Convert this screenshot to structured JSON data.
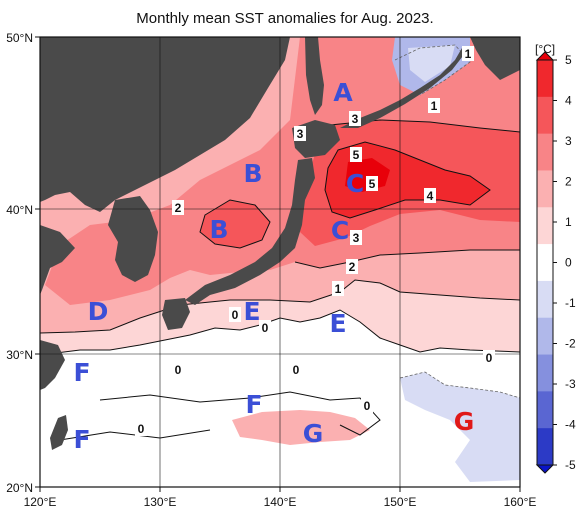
{
  "title": "Monthly mean SST anomalies for Aug. 2023.",
  "map": {
    "lon_ticks": [
      "120°E",
      "130°E",
      "140°E",
      "150°E",
      "160°E"
    ],
    "lat_ticks": [
      "50°N",
      "40°N",
      "30°N",
      "20°N"
    ]
  },
  "colorbar": {
    "unit": "[°C]",
    "ticks": [
      "5",
      "4",
      "3",
      "2",
      "1",
      "0",
      "-1",
      "-2",
      "-3",
      "-4",
      "-5"
    ],
    "colors": [
      "#e8000a",
      "#f0282d",
      "#f5565a",
      "#f88487",
      "#fbb0b1",
      "#fdd6d6",
      "#ffffff",
      "#d8dcf4",
      "#b0b8ea",
      "#8590de",
      "#5a66d2",
      "#2c3ac6",
      "#0a14c8"
    ]
  },
  "region_labels": [
    {
      "id": "A",
      "text": "A",
      "color": "#3b4fd6"
    },
    {
      "id": "B1",
      "text": "B",
      "color": "#3b4fd6"
    },
    {
      "id": "B2",
      "text": "B",
      "color": "#3b4fd6"
    },
    {
      "id": "C1",
      "text": "C",
      "color": "#3b4fd6"
    },
    {
      "id": "C2",
      "text": "C",
      "color": "#3b4fd6"
    },
    {
      "id": "D",
      "text": "D",
      "color": "#3b4fd6"
    },
    {
      "id": "E1",
      "text": "E",
      "color": "#3b4fd6"
    },
    {
      "id": "E2",
      "text": "E",
      "color": "#3b4fd6"
    },
    {
      "id": "F1",
      "text": "F",
      "color": "#3b4fd6"
    },
    {
      "id": "F2",
      "text": "F",
      "color": "#3b4fd6"
    },
    {
      "id": "F3",
      "text": "F",
      "color": "#3b4fd6"
    },
    {
      "id": "G1",
      "text": "G",
      "color": "#3b4fd6"
    },
    {
      "id": "G2",
      "text": "G",
      "color": "#e01818"
    }
  ],
  "contour_labels": [
    "1",
    "1",
    "3",
    "3",
    "5",
    "5",
    "4",
    "2",
    "3",
    "2",
    "1",
    "0",
    "0",
    "0",
    "0",
    "0",
    "0",
    "0"
  ]
}
